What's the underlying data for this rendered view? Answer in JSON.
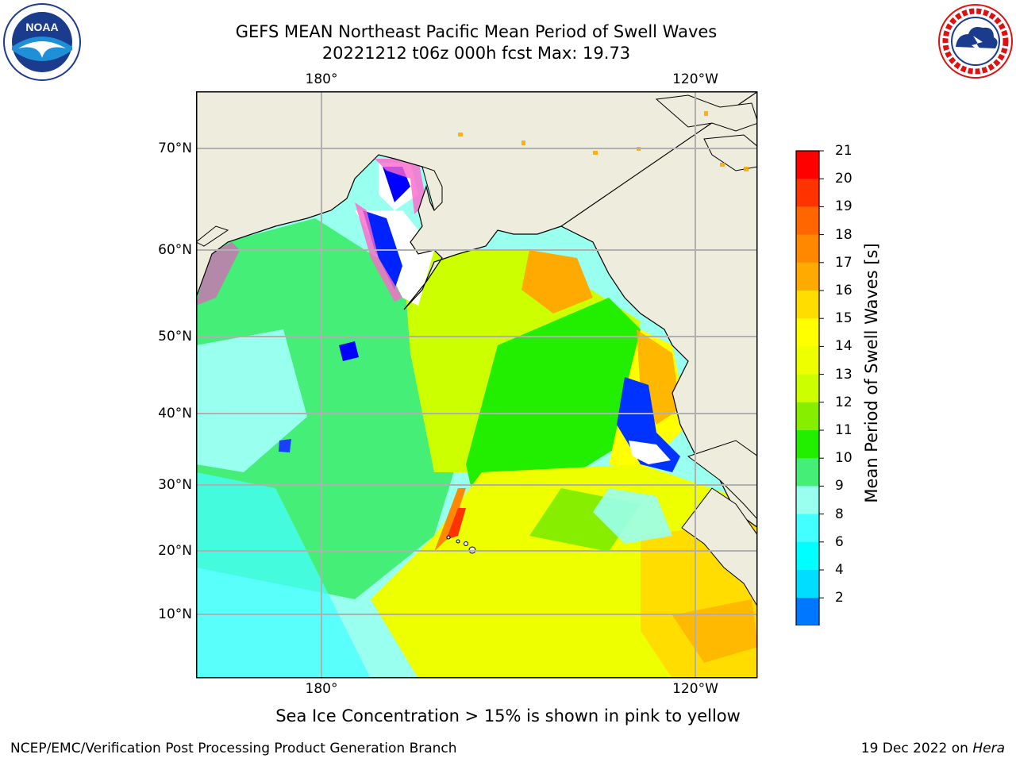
{
  "title": {
    "line1": "GEFS MEAN Northeast Pacific Mean Period of Swell Waves",
    "line2": "20221212 t06z 000h fcst   Max: 19.73"
  },
  "logos": {
    "left": {
      "text": "NOAA",
      "ring_text": "NATIONAL OCEANIC AND ATMOSPHERIC ADMINISTRATION · U.S. DEPARTMENT OF COMMERCE"
    },
    "right": {
      "ring_text": "NATIONAL WEATHER SERVICE"
    }
  },
  "map": {
    "lon_ticks_top": [
      "180°",
      "120°W"
    ],
    "lon_ticks_bottom": [
      "180°",
      "120°W"
    ],
    "lat_ticks": [
      "70°N",
      "60°N",
      "50°N",
      "40°N",
      "30°N",
      "20°N",
      "10°N"
    ],
    "land_color": "#eeecdc",
    "grid_color": "#b0b0b0"
  },
  "colorbar": {
    "label": "Mean Period of Swell Waves [s]",
    "ticks": [
      "21",
      "20",
      "19",
      "18",
      "17",
      "16",
      "15",
      "14",
      "13",
      "12",
      "11",
      "10",
      "9",
      "8",
      "6",
      "4",
      "2"
    ],
    "colors": [
      "#ff0000",
      "#ff3300",
      "#ff6600",
      "#ff8800",
      "#ffaa00",
      "#ffdd00",
      "#ffff00",
      "#eeff00",
      "#ccff00",
      "#88ee00",
      "#22ee00",
      "#44ee77",
      "#99ffee",
      "#44ffff",
      "#00ffff",
      "#00ddff",
      "#0077ff"
    ],
    "under_color": "#0000ff"
  },
  "note": "Sea Ice Concentration > 15% is shown in pink to yellow",
  "footer": {
    "left": "NCEP/EMC/Verification Post Processing Product Generation Branch",
    "right_date": "19 Dec 2022 on ",
    "right_host": "Hera"
  }
}
